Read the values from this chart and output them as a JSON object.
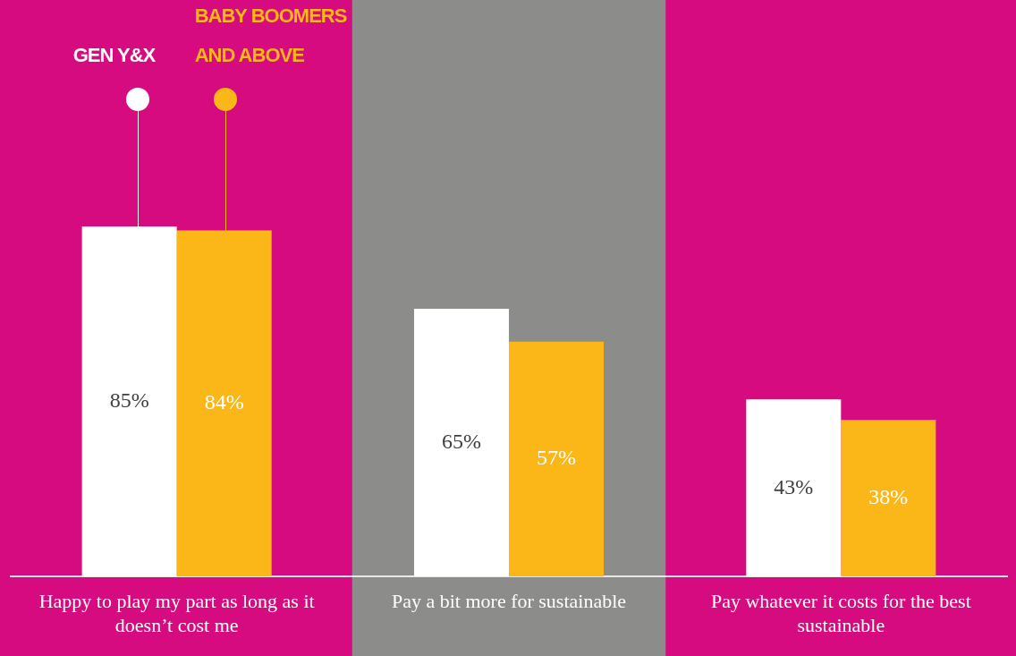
{
  "chart_data": {
    "type": "bar",
    "categories": [
      "Happy to play my part as long as it doesn’t cost me",
      "Pay a bit more for sustainable",
      "Pay whatever it costs for the best sustainable"
    ],
    "series": [
      {
        "name": "GEN Y&X",
        "color": "#ffffff",
        "values": [
          85,
          65,
          43
        ],
        "value_labels": [
          "85%",
          "65%",
          "43%"
        ]
      },
      {
        "name": "BABY BOOMERS AND ABOVE",
        "color": "#fbb617",
        "values": [
          84,
          57,
          38
        ],
        "value_labels": [
          "84%",
          "57%",
          "38%"
        ]
      }
    ],
    "bands": [
      {
        "axis": "x",
        "from": "Pay a bit more for sustainable",
        "to": "Pay a bit more for sustainable",
        "color": "#8c8c8a"
      }
    ],
    "tick_labels": "x",
    "legend": "top left",
    "grid": false
  }
}
